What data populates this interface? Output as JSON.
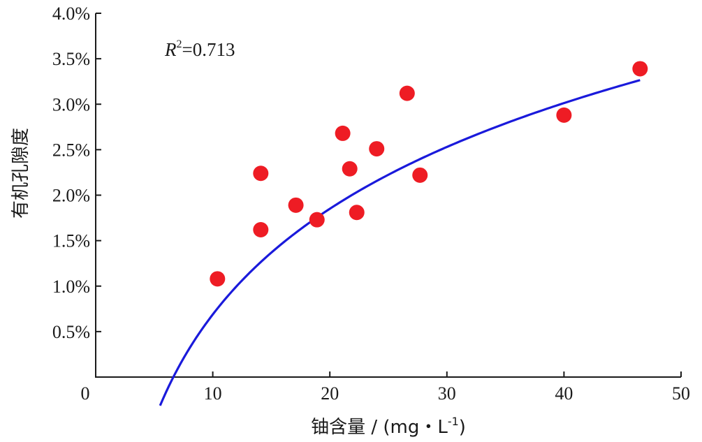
{
  "chart_data": {
    "type": "scatter",
    "title": "",
    "xlabel": "铀含量 / (mg・L",
    "xlabel_sup": "-1",
    "xlabel_close": ")",
    "ylabel": "有机孔隙度",
    "xlim": [
      0,
      50
    ],
    "ylim": [
      0.0,
      4.0
    ],
    "x_ticks": [
      0,
      10,
      20,
      30,
      40,
      50
    ],
    "x_tick_labels": [
      "0",
      "10",
      "20",
      "30",
      "40",
      "50"
    ],
    "y_ticks": [
      0.5,
      1.0,
      1.5,
      2.0,
      2.5,
      3.0,
      3.5,
      4.0
    ],
    "y_tick_labels": [
      "0.5%",
      "1.0%",
      "1.5%",
      "2.0%",
      "2.5%",
      "3.0%",
      "3.5%",
      "4.0%"
    ],
    "points": [
      {
        "x": 10.4,
        "y": 1.08
      },
      {
        "x": 14.1,
        "y": 1.62
      },
      {
        "x": 14.1,
        "y": 2.24
      },
      {
        "x": 17.1,
        "y": 1.89
      },
      {
        "x": 18.9,
        "y": 1.73
      },
      {
        "x": 21.1,
        "y": 2.68
      },
      {
        "x": 21.7,
        "y": 2.29
      },
      {
        "x": 22.3,
        "y": 1.81
      },
      {
        "x": 24.0,
        "y": 2.51
      },
      {
        "x": 26.6,
        "y": 3.12
      },
      {
        "x": 27.7,
        "y": 2.22
      },
      {
        "x": 40.0,
        "y": 2.88
      },
      {
        "x": 46.5,
        "y": 3.39
      }
    ],
    "fit": {
      "type": "logarithmic",
      "x_range": [
        5.5,
        46.5
      ],
      "a": -3.172,
      "b": 1.6765
    },
    "annotation": {
      "r_symbol": "R",
      "r_superscript": "2",
      "r_value": "=0.713"
    },
    "colors": {
      "points": "#ee1c24",
      "fit_line": "#1a1adb",
      "axis": "#1a1a1a"
    }
  }
}
